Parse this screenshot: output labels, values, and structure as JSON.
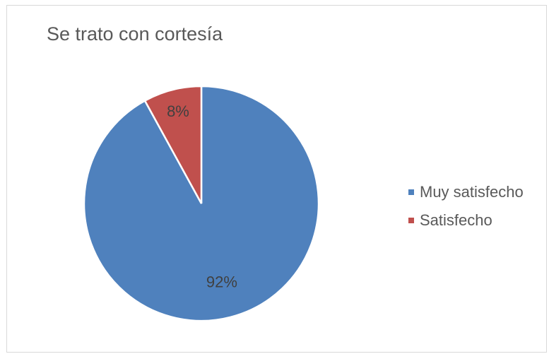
{
  "chart_data": {
    "type": "pie",
    "title": "Se trato con cortesía",
    "categories": [
      "Muy satisfecho",
      "Satisfecho"
    ],
    "values": [
      92,
      8
    ],
    "labels": [
      "92%",
      "8%"
    ],
    "colors": [
      "#4f81bd",
      "#c0504d"
    ],
    "legend_position": "right"
  }
}
